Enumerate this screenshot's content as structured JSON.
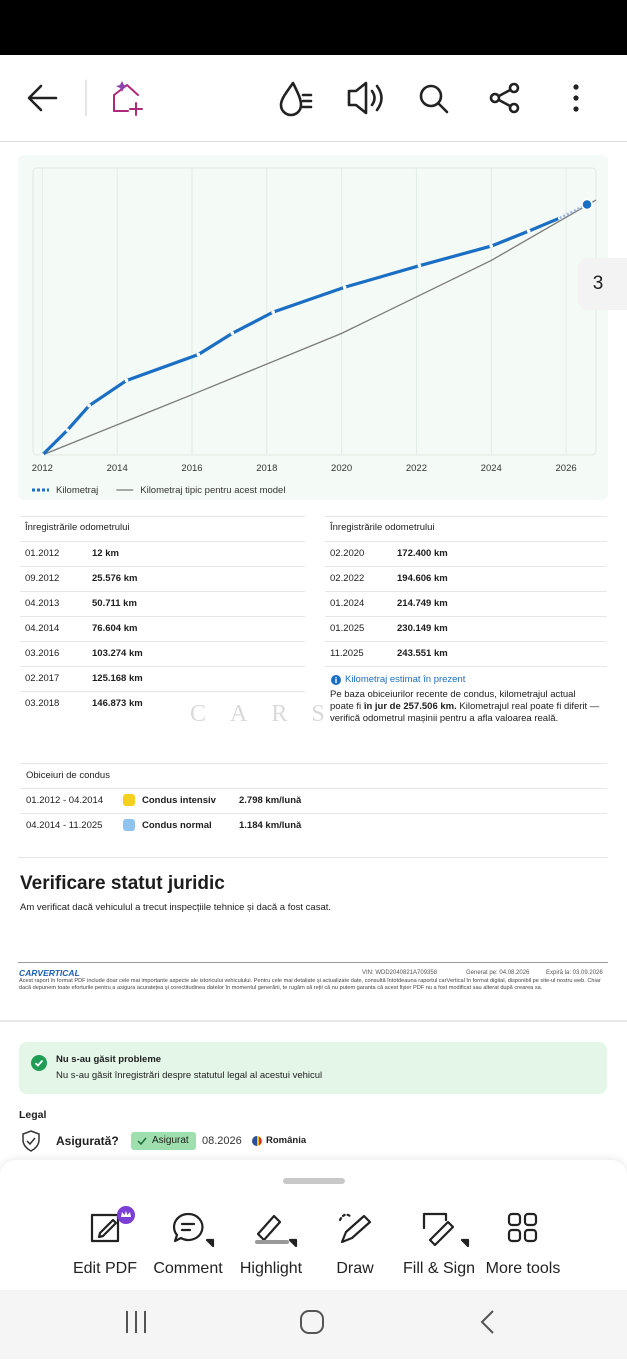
{
  "toolbar": {
    "page_number": "3"
  },
  "chart_data": {
    "type": "line",
    "xlim": [
      2011.75,
      2026.8
    ],
    "xticks": [
      2012,
      2014,
      2016,
      2018,
      2020,
      2022,
      2024,
      2026
    ],
    "ylim": [
      0,
      295000
    ],
    "grid": true,
    "series": [
      {
        "name": "Kilometraj",
        "color": "#1a6fc4",
        "markers": true,
        "x": [
          2012.0,
          2012.67,
          2013.25,
          2014.25,
          2016.17,
          2017.08,
          2018.17,
          2020.08,
          2022.08,
          2024.0,
          2025.0,
          2025.83
        ],
        "values": [
          12,
          25576,
          50711,
          76604,
          103274,
          125168,
          146873,
          172400,
          194606,
          214749,
          230149,
          243551
        ]
      },
      {
        "name": "Kilometraj tipic pentru acest model",
        "color": "#7a7a7a",
        "markers": false,
        "x": [
          2012.0,
          2016.0,
          2020.0,
          2024.0,
          2026.8
        ],
        "values": [
          0,
          62000,
          125000,
          200000,
          262000
        ]
      }
    ],
    "estimate": {
      "x": 2026.56,
      "value": 257506
    }
  },
  "odometer": {
    "left": {
      "title": "Înregistrările odometrului",
      "rows": [
        [
          "01.2012",
          "12 km"
        ],
        [
          "09.2012",
          "25.576 km"
        ],
        [
          "04.2013",
          "50.711 km"
        ],
        [
          "04.2014",
          "76.604 km"
        ],
        [
          "03.2016",
          "103.274 km"
        ],
        [
          "02.2017",
          "125.168 km"
        ],
        [
          "03.2018",
          "146.873 km"
        ]
      ]
    },
    "right": {
      "title": "Înregistrările odometrului",
      "rows": [
        [
          "02.2020",
          "172.400 km"
        ],
        [
          "02.2022",
          "194.606 km"
        ],
        [
          "01.2024",
          "214.749 km"
        ],
        [
          "01.2025",
          "230.149 km"
        ],
        [
          "11.2025",
          "243.551 km"
        ]
      ],
      "estimate_label": "Kilometraj estimat în prezent",
      "note": [
        "Pe baza obiceiurilor recente de condus, kilometrajul actual poate fi ",
        "în jur de 257.506 km.",
        " Kilometrajul real poate fi diferit — verifică odometrul mașinii pentru a afla valoarea reală."
      ]
    }
  },
  "watermark": "CARS",
  "driving": {
    "title": "Obiceiuri de condus",
    "rows": [
      [
        "01.2012 - 04.2014",
        "Condus intensiv",
        "2.798 km/lună"
      ],
      [
        "04.2014 - 11.2025",
        "Condus normal",
        "1.184 km/lună"
      ]
    ]
  },
  "legal_check": {
    "title": "Verificare statut juridic",
    "subtitle": "Am verificat dacă vehiculul a trecut inspecțiile tehnice și dacă a fost casat."
  },
  "footer": {
    "logo": "CARVERTICAL",
    "vin": "VIN: WDD2040821A709358",
    "generated": "Generat pe: 04.08.2026",
    "expires": "Expiră la: 03.09.2026",
    "disclaimer": "Acest raport în format PDF include doar cele mai importante aspecte ale istoricului vehiculului. Pentru cele mai detaliate și actualizate date, consultă întotdeauna raportul carVertical în format digital, disponibil pe site-ul nostru web. Chiar dacă depunem toate eforturile pentru a asigura acuratețea și corectitudinea datelor în momentul generării, te rugăm să reții că nu putem garanta că acest fișier PDF nu a fost modificat sau alterat după crearea sa."
  },
  "status": {
    "title": "Nu s-au găsit probleme",
    "text": "Nu s-au găsit înregistrări despre statutul legal al acestui vehicul"
  },
  "legal": {
    "heading": "Legal",
    "label": "Asigurată?",
    "badge": "Asigurat",
    "date": "08.2026",
    "country": "România"
  },
  "tools": [
    "Edit PDF",
    "Comment",
    "Highlight",
    "Draw",
    "Fill & Sign",
    "More tools"
  ]
}
